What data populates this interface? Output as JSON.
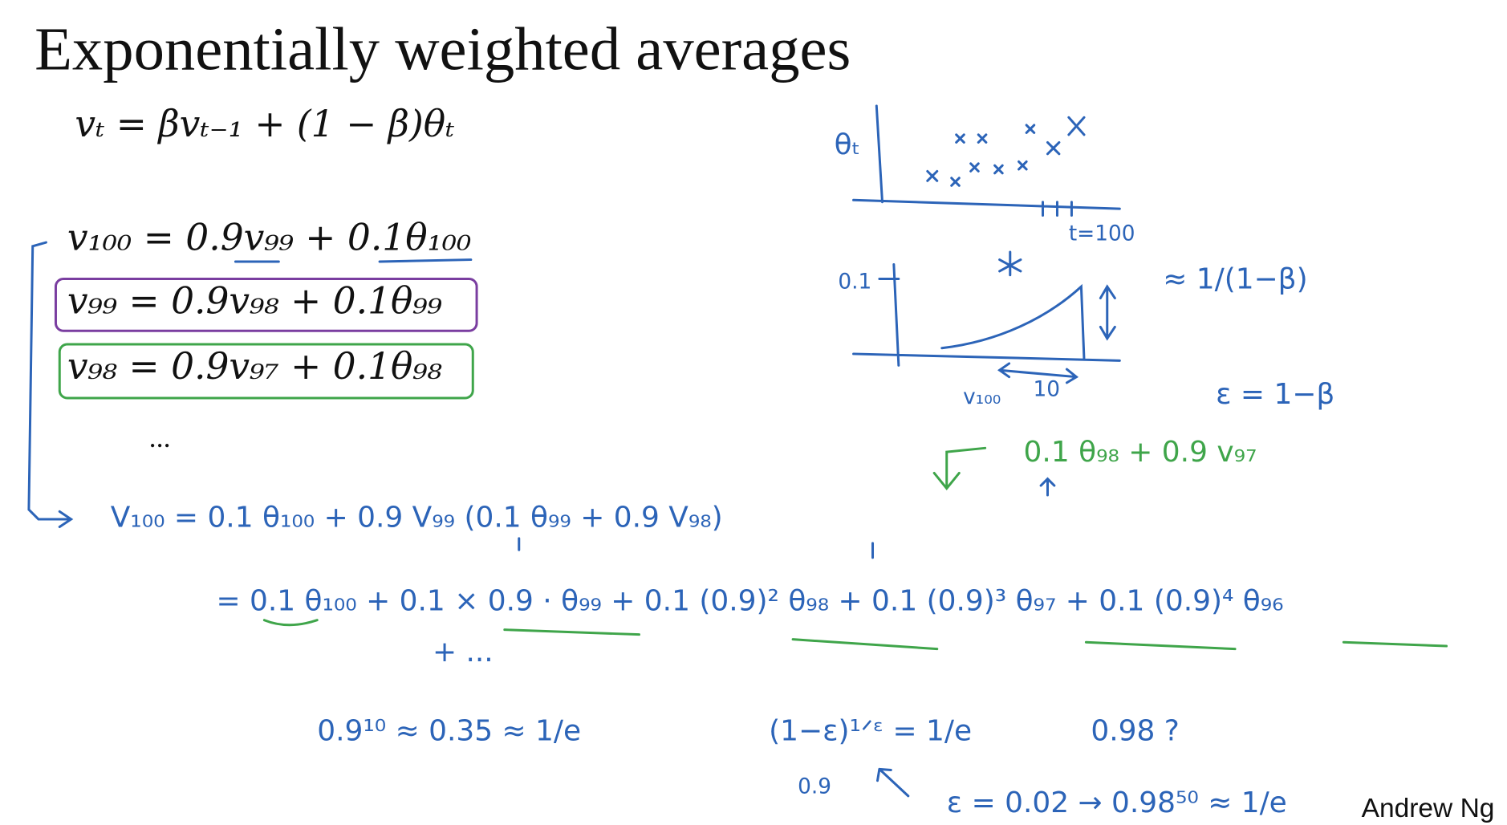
{
  "title": "Exponentially weighted averages",
  "recurrence": "vₜ = βvₜ₋₁ + (1 − β)θₜ",
  "expansion": [
    "v₁₀₀ = 0.9v₉₉ + 0.1θ₁₀₀",
    "v₉₉ = 0.9v₉₈ + 0.1θ₉₉",
    "v₉₈ = 0.9v₉₇ + 0.1θ₉₈"
  ],
  "ellipsis": "...",
  "notes": [
    "V₁₀₀ = 0.1 θ₁₀₀ + 0.9 V₉₉ (0.1 θ₉₉ + 0.9 V₉₈)",
    "= 0.1 θ₁₀₀ + 0.1 × 0.9 · θ₉₉ + 0.1 (0.9)² θ₉₈ + 0.1 (0.9)³ θ₉₇ + 0.1 (0.9)⁴ θ₉₆",
    "+ ...",
    "0.1 θ₉₈ + 0.9 v₉₇",
    "0.9¹⁰ ≈ 0.35 ≈ 1/e",
    "(1−ε)¹ᐟᵋ = 1/e",
    "0.98 ?",
    "ε = 0.02 → 0.98⁵⁰ ≈ 1/e",
    "≈ 1/(1−β)",
    "ε = 1−β",
    "θₜ",
    "t=100",
    "0.1",
    "v₁₀₀",
    "10",
    "0.9"
  ],
  "author": "Andrew Ng"
}
